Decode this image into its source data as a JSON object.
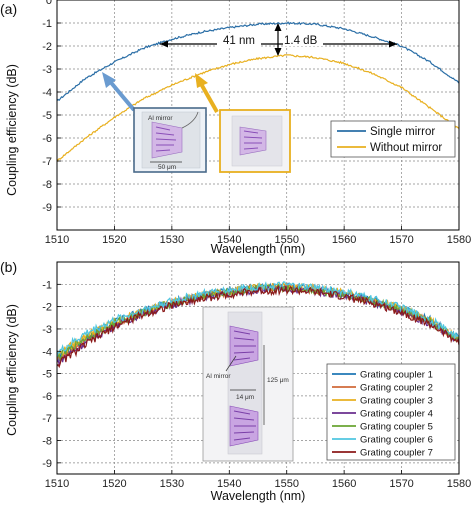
{
  "chart_data": [
    {
      "type": "line",
      "panel": "(a)",
      "xlabel": "Wavelength (nm)",
      "ylabel": "Coupling efficiency (dB)",
      "xlim": [
        1510,
        1580
      ],
      "ylim": [
        -10,
        0
      ],
      "xticks": [
        1510,
        1520,
        1530,
        1540,
        1550,
        1560,
        1570,
        1580
      ],
      "yticks": [
        0,
        -1,
        -2,
        -3,
        -4,
        -5,
        -6,
        -7,
        -8,
        -9
      ],
      "grid": true,
      "legend_position": "right",
      "series": [
        {
          "name": "Single mirror",
          "color": "#2a6ea6",
          "x": [
            1510,
            1515,
            1520,
            1525,
            1530,
            1535,
            1540,
            1545,
            1550,
            1555,
            1560,
            1565,
            1570,
            1575,
            1580
          ],
          "values": [
            -4.4,
            -3.4,
            -2.7,
            -2.1,
            -1.7,
            -1.4,
            -1.2,
            -1.05,
            -1.0,
            -1.05,
            -1.25,
            -1.6,
            -2.0,
            -2.7,
            -3.6
          ]
        },
        {
          "name": "Without mirror",
          "color": "#e8b020",
          "x": [
            1510,
            1515,
            1520,
            1525,
            1530,
            1535,
            1540,
            1545,
            1550,
            1555,
            1560,
            1565,
            1570,
            1575,
            1580
          ],
          "values": [
            -7.0,
            -6.0,
            -5.1,
            -4.3,
            -3.7,
            -3.2,
            -2.8,
            -2.55,
            -2.4,
            -2.5,
            -2.75,
            -3.2,
            -3.8,
            -4.7,
            -5.6
          ]
        }
      ],
      "annotations": [
        {
          "text": "41 nm",
          "kind": "arrow",
          "x_from": 1530,
          "x_to": 1570,
          "y": -1.5
        },
        {
          "text": "1.4 dB",
          "kind": "arrow",
          "x": 1550,
          "y_from": -1.0,
          "y_to": -2.4
        }
      ],
      "insets": [
        {
          "label": "Al mirror",
          "scale": "50 μm",
          "frame_color": "#4a6a8a"
        },
        {
          "frame_color": "#e8b020"
        }
      ]
    },
    {
      "type": "line",
      "panel": "(b)",
      "xlabel": "Wavelength (nm)",
      "ylabel": "Coupling efficiency (dB)",
      "xlim": [
        1510,
        1580
      ],
      "ylim": [
        -9.5,
        0
      ],
      "xticks": [
        1510,
        1520,
        1530,
        1540,
        1550,
        1560,
        1570,
        1580
      ],
      "yticks": [
        -1,
        -2,
        -3,
        -4,
        -5,
        -6,
        -7,
        -8,
        -9
      ],
      "grid": true,
      "legend_position": "right",
      "x": [
        1510,
        1515,
        1520,
        1525,
        1530,
        1535,
        1540,
        1545,
        1550,
        1555,
        1560,
        1565,
        1570,
        1575,
        1580
      ],
      "series": [
        {
          "name": "Grating coupler 1",
          "color": "#1f77b4",
          "values": [
            -4.3,
            -3.4,
            -2.7,
            -2.2,
            -1.8,
            -1.5,
            -1.3,
            -1.15,
            -1.1,
            -1.2,
            -1.4,
            -1.7,
            -2.1,
            -2.6,
            -3.4
          ]
        },
        {
          "name": "Grating coupler 2",
          "color": "#d06a3a",
          "values": [
            -4.4,
            -3.5,
            -2.8,
            -2.3,
            -1.85,
            -1.55,
            -1.35,
            -1.2,
            -1.15,
            -1.25,
            -1.45,
            -1.75,
            -2.15,
            -2.7,
            -3.5
          ]
        },
        {
          "name": "Grating coupler 3",
          "color": "#e8b020",
          "values": [
            -4.2,
            -3.3,
            -2.7,
            -2.2,
            -1.8,
            -1.5,
            -1.3,
            -1.15,
            -1.1,
            -1.2,
            -1.4,
            -1.7,
            -2.1,
            -2.65,
            -3.45
          ]
        },
        {
          "name": "Grating coupler 4",
          "color": "#6a2e8e",
          "values": [
            -4.5,
            -3.6,
            -2.85,
            -2.3,
            -1.9,
            -1.6,
            -1.4,
            -1.25,
            -1.2,
            -1.3,
            -1.5,
            -1.8,
            -2.2,
            -2.75,
            -3.55
          ]
        },
        {
          "name": "Grating coupler 5",
          "color": "#6aa533",
          "values": [
            -4.3,
            -3.4,
            -2.75,
            -2.25,
            -1.85,
            -1.55,
            -1.35,
            -1.2,
            -1.15,
            -1.25,
            -1.45,
            -1.75,
            -2.15,
            -2.7,
            -3.5
          ]
        },
        {
          "name": "Grating coupler 6",
          "color": "#4fc6e0",
          "values": [
            -4.1,
            -3.2,
            -2.6,
            -2.15,
            -1.75,
            -1.45,
            -1.25,
            -1.1,
            -1.05,
            -1.15,
            -1.35,
            -1.65,
            -2.05,
            -2.6,
            -3.4
          ]
        },
        {
          "name": "Grating coupler 7",
          "color": "#8b1a1a",
          "values": [
            -4.6,
            -3.7,
            -2.9,
            -2.35,
            -1.95,
            -1.65,
            -1.45,
            -1.3,
            -1.25,
            -1.35,
            -1.55,
            -1.85,
            -2.25,
            -2.8,
            -3.6
          ]
        }
      ],
      "insets": [
        {
          "label_mirror": "Al mirror",
          "label_width": "14 μm",
          "label_pitch": "125 μm"
        }
      ]
    }
  ]
}
